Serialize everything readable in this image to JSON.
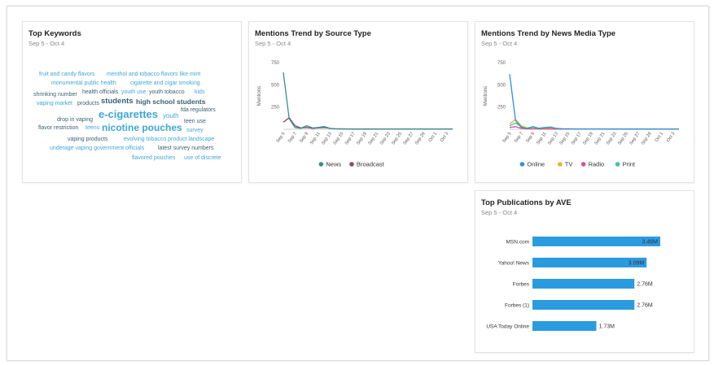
{
  "top_keywords": {
    "title": "Top Keywords",
    "date_range": "Sep 5 - Oct 4",
    "words": [
      "fruit and candy flavors",
      "menthol and tobacco flavors like mint",
      "monumental public health",
      "cigarette and cigar smoking",
      "shrinking number",
      "health officials",
      "youth use",
      "youth tobacco",
      "kids",
      "vaping market",
      "products",
      "students",
      "high school students",
      "fda regulators",
      "e-cigarettes",
      "youth",
      "drop in vaping",
      "teen use",
      "flavor restriction",
      "teens",
      "nicotine pouches",
      "survey",
      "vaping products",
      "evolving tobacco product landscape",
      "underage vaping government officials",
      "latest survey numbers",
      "flavored pouches",
      "use of discrete"
    ]
  },
  "source_trend": {
    "title": "Mentions Trend by Source Type",
    "date_range": "Sep 5 - Oct 4",
    "chart_data": {
      "type": "line",
      "ylabel": "Mentions",
      "y_ticks": [
        "750",
        "500",
        "250"
      ],
      "ylim": [
        0,
        750
      ],
      "x": [
        "Sep 5",
        "Sep 6",
        "Sep 7",
        "Sep 8",
        "Sep 9",
        "Sep 10",
        "Sep 11",
        "Sep 12",
        "Sep 13",
        "Sep 14",
        "Sep 15",
        "Sep 16",
        "Sep 17",
        "Sep 18",
        "Sep 19",
        "Sep 20",
        "Sep 21",
        "Sep 22",
        "Sep 23",
        "Sep 24",
        "Sep 25",
        "Sep 26",
        "Sep 27",
        "Sep 28",
        "Sep 29",
        "Sep 30",
        "Oct 1",
        "Oct 2",
        "Oct 3",
        "Oct 4"
      ],
      "x_tick_labels": [
        "Sep 5",
        "Sep 7",
        "Sep 9",
        "Sep 11",
        "Sep 13",
        "Sep 15",
        "Sep 17",
        "Sep 19",
        "Sep 21",
        "Sep 23",
        "Sep 25",
        "Sep 27",
        "Sep 29",
        "Oct 1",
        "Oct 3"
      ],
      "legend": "bottom",
      "series": [
        {
          "name": "News",
          "color": "#3a8f8a",
          "values": [
            640,
            120,
            20,
            10,
            40,
            15,
            20,
            30,
            10,
            5,
            5,
            3,
            3,
            2,
            5,
            3,
            2,
            2,
            2,
            2,
            2,
            3,
            2,
            2,
            3,
            2,
            2,
            2,
            2,
            2
          ]
        },
        {
          "name": "Broadcast",
          "color": "#8a4a6a",
          "values": [
            80,
            130,
            40,
            15,
            20,
            10,
            15,
            20,
            10,
            5,
            5,
            3,
            2,
            2,
            3,
            2,
            2,
            2,
            2,
            2,
            2,
            2,
            2,
            2,
            2,
            2,
            2,
            2,
            2,
            2
          ]
        }
      ]
    }
  },
  "media_trend": {
    "title": "Mentions Trend by News Media Type",
    "date_range": "Sep 5 - Oct 4",
    "chart_data": {
      "type": "line",
      "ylabel": "Mentions",
      "y_ticks": [
        "750",
        "500",
        "250"
      ],
      "ylim": [
        0,
        750
      ],
      "x": [
        "Sep 5",
        "Sep 6",
        "Sep 7",
        "Sep 8",
        "Sep 9",
        "Sep 10",
        "Sep 11",
        "Sep 12",
        "Sep 13",
        "Sep 14",
        "Sep 15",
        "Sep 16",
        "Sep 17",
        "Sep 18",
        "Sep 19",
        "Sep 20",
        "Sep 21",
        "Sep 22",
        "Sep 23",
        "Sep 24",
        "Sep 25",
        "Sep 26",
        "Sep 27",
        "Sep 28",
        "Sep 29",
        "Sep 30",
        "Oct 1",
        "Oct 2",
        "Oct 3",
        "Oct 4"
      ],
      "x_tick_labels": [
        "Sep 5",
        "Sep 7",
        "Sep 9",
        "Sep 11",
        "Sep 13",
        "Sep 15",
        "Sep 17",
        "Sep 19",
        "Sep 21",
        "Sep 23",
        "Sep 25",
        "Sep 27",
        "Sep 29",
        "Oct 1",
        "Oct 3"
      ],
      "legend": "bottom",
      "series": [
        {
          "name": "Online",
          "color": "#2e8fd6",
          "values": [
            620,
            100,
            20,
            10,
            30,
            10,
            20,
            25,
            10,
            5,
            5,
            3,
            3,
            2,
            4,
            3,
            2,
            2,
            2,
            2,
            2,
            3,
            2,
            2,
            3,
            2,
            2,
            2,
            2,
            2
          ]
        },
        {
          "name": "TV",
          "color": "#e8b22e",
          "values": [
            60,
            110,
            40,
            15,
            25,
            10,
            15,
            20,
            10,
            5,
            5,
            3,
            2,
            2,
            3,
            2,
            2,
            2,
            2,
            2,
            2,
            2,
            2,
            2,
            2,
            2,
            2,
            2,
            2,
            2
          ]
        },
        {
          "name": "Radio",
          "color": "#d6568a",
          "values": [
            20,
            30,
            10,
            5,
            5,
            3,
            3,
            3,
            2,
            2,
            2,
            2,
            2,
            2,
            2,
            2,
            2,
            2,
            2,
            2,
            2,
            2,
            2,
            2,
            2,
            2,
            2,
            2,
            2,
            2
          ]
        },
        {
          "name": "Print",
          "color": "#3cc4a8",
          "values": [
            40,
            70,
            30,
            10,
            20,
            8,
            12,
            15,
            8,
            4,
            4,
            3,
            3,
            2,
            3,
            2,
            2,
            2,
            2,
            2,
            2,
            2,
            2,
            2,
            2,
            2,
            2,
            2,
            2,
            2
          ]
        }
      ]
    }
  },
  "top_publications": {
    "title": "Top Publications by AVE",
    "date_range": "Sep 5 - Oct 4",
    "chart_data": {
      "type": "bar",
      "orientation": "horizontal",
      "categories": [
        "MSN.com",
        "Yahoo! News",
        "Forbes",
        "Forbes (1)",
        "USA Today Online"
      ],
      "values": [
        3.46,
        3.09,
        2.76,
        2.76,
        1.73
      ],
      "value_labels": [
        "3.46M",
        "3.09M",
        "2.76M",
        "2.76M",
        "1.73M"
      ],
      "color": "#2b9be0",
      "xlim": [
        0,
        3.46
      ]
    }
  }
}
